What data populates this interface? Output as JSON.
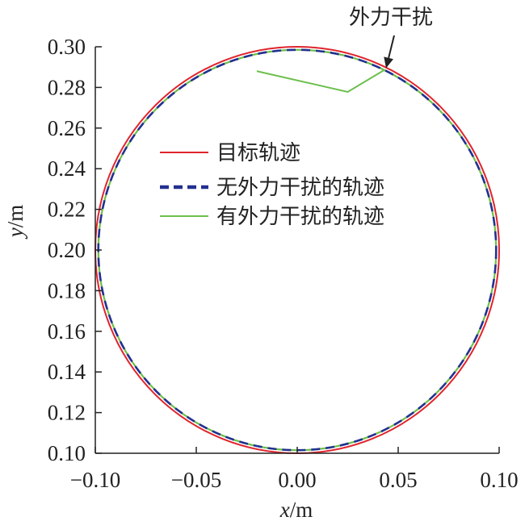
{
  "chart_data": {
    "type": "line",
    "title": "",
    "xlabel": {
      "var": "x",
      "unit": "/m"
    },
    "ylabel": {
      "var": "y",
      "unit": "/m"
    },
    "xlim": [
      -0.1,
      0.1
    ],
    "ylim": [
      0.1,
      0.3
    ],
    "xticks": [
      -0.1,
      -0.05,
      0.0,
      0.05,
      0.1
    ],
    "xtick_labels": [
      "−0.10",
      "−0.05",
      "0.00",
      "0.05",
      "0.10"
    ],
    "yticks": [
      0.1,
      0.12,
      0.14,
      0.16,
      0.18,
      0.2,
      0.22,
      0.24,
      0.26,
      0.28,
      0.3
    ],
    "ytick_labels": [
      "0.10",
      "0.12",
      "0.14",
      "0.16",
      "0.18",
      "0.20",
      "0.22",
      "0.24",
      "0.26",
      "0.28",
      "0.30"
    ],
    "grid": false,
    "legend_position": "upper-center",
    "series": [
      {
        "name": "目标轨迹",
        "color": "#e0242c",
        "style": "solid",
        "shape": "circle",
        "center": [
          0.0,
          0.2
        ],
        "radius": 0.1
      },
      {
        "name": "无外力干扰的轨迹",
        "color": "#22318f",
        "style": "dashed",
        "shape": "circle",
        "center": [
          0.0,
          0.2
        ],
        "radius": 0.0985
      },
      {
        "name": "有外力干扰的轨迹",
        "color": "#6cbf4b",
        "style": "solid",
        "shape": "circle",
        "center": [
          0.0,
          0.2
        ],
        "radius": 0.0985,
        "disturbance_path": {
          "x": [
            -0.02,
            0.025,
            0.043
          ],
          "y": [
            0.288,
            0.2778,
            0.2885
          ]
        }
      }
    ],
    "annotations": [
      {
        "text": "外力干扰",
        "arrow_to": [
          0.044,
          0.2895
        ]
      }
    ]
  }
}
